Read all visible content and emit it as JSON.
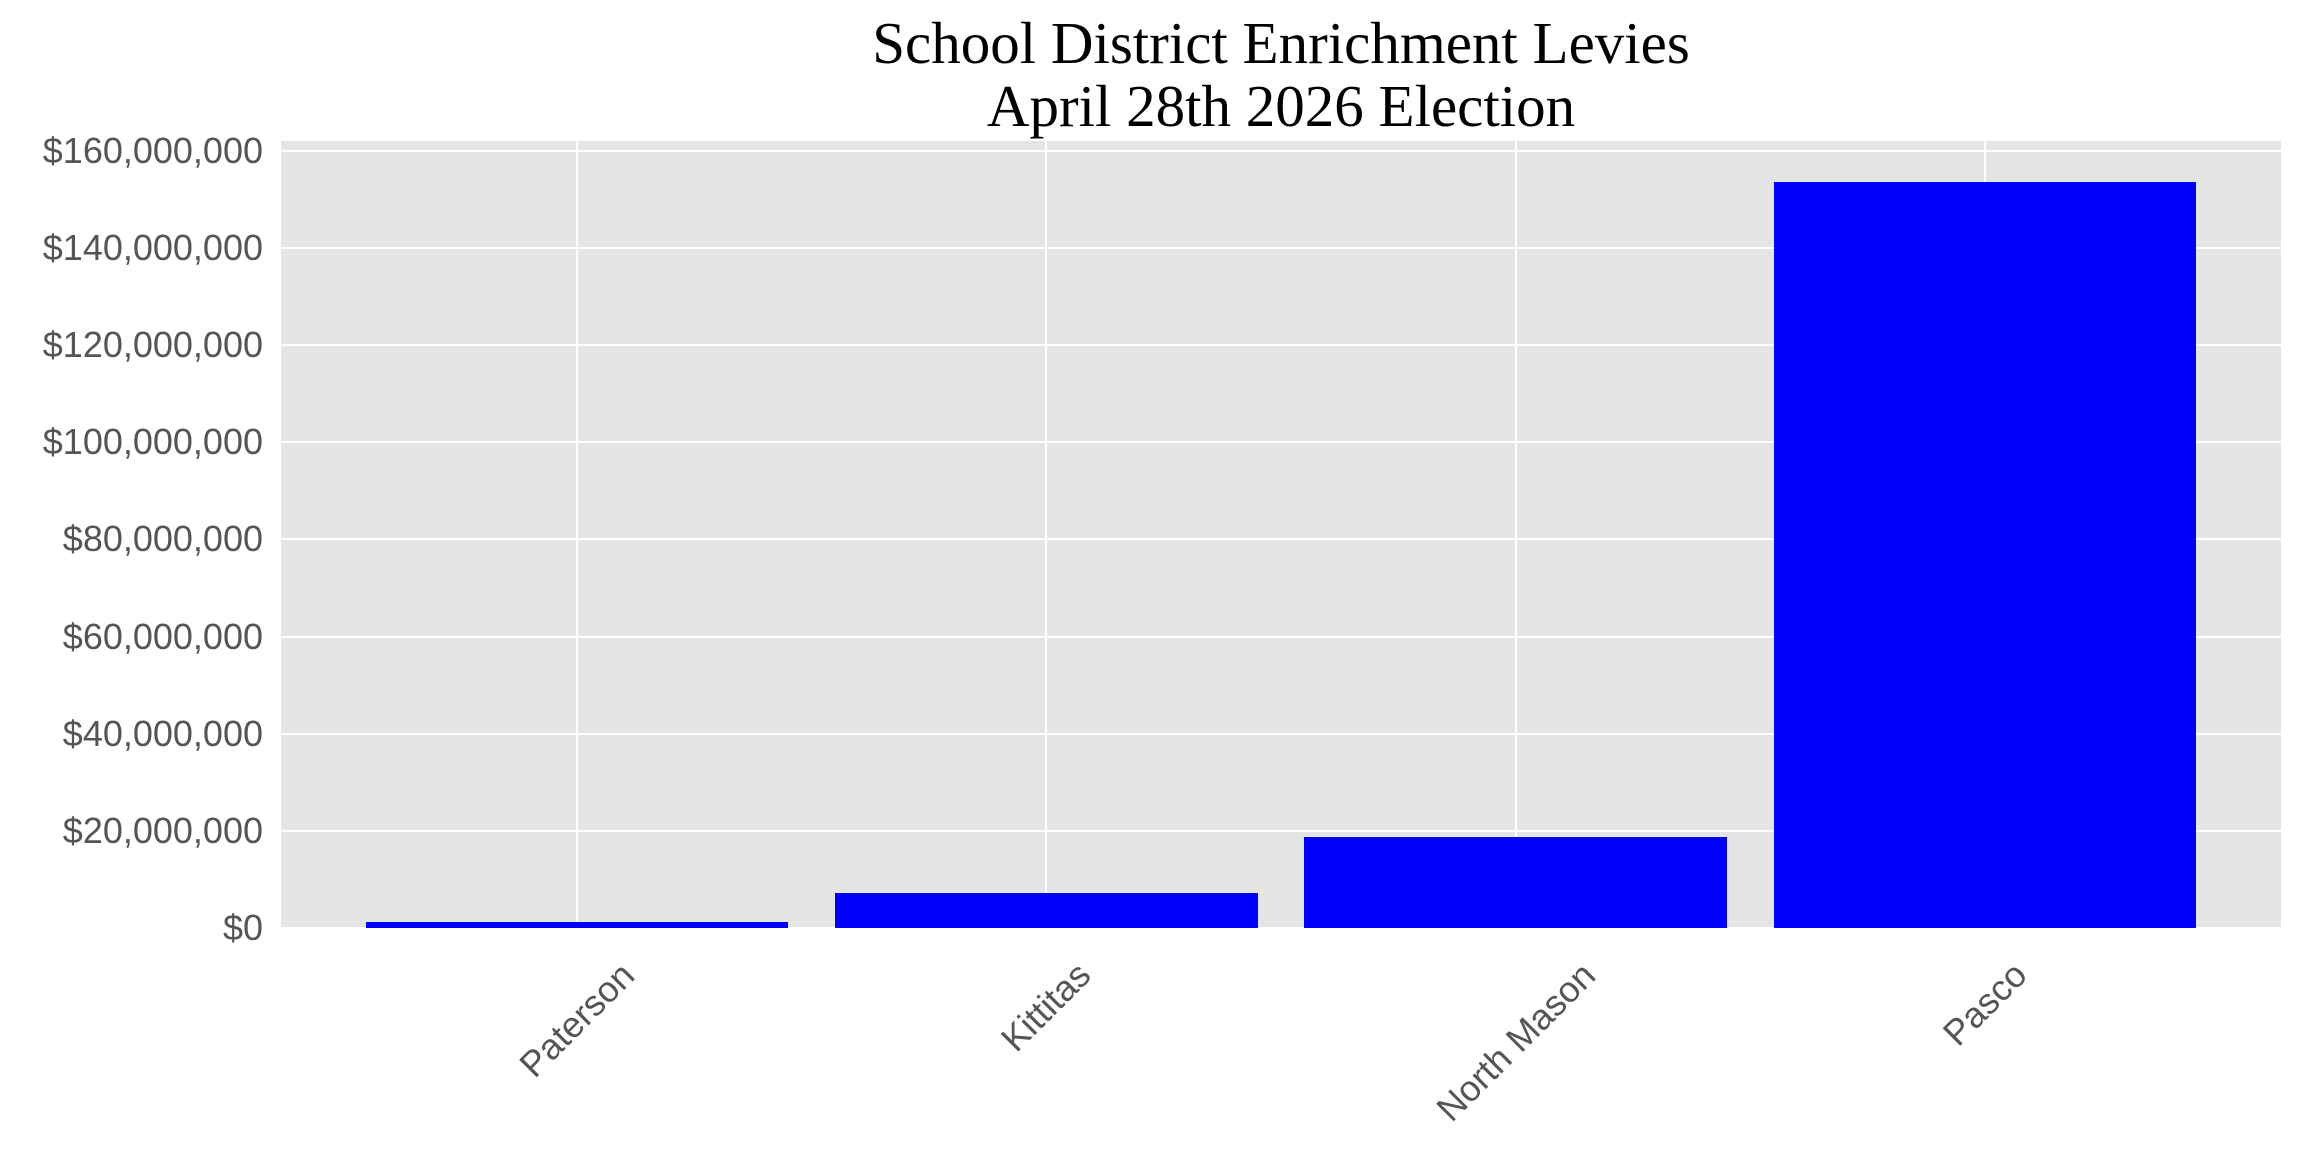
{
  "chart_data": {
    "type": "bar",
    "title": "School District Enrichment Levies\nApril 28th 2026 Election",
    "title_lines": [
      "School District Enrichment Levies",
      "April 28th 2026 Election"
    ],
    "xlabel": "",
    "ylabel": "",
    "categories": [
      "Paterson",
      "Kittitas",
      "North Mason",
      "Pasco"
    ],
    "values": [
      1200000,
      7300000,
      18800000,
      153600000
    ],
    "ylim": [
      0,
      162000000
    ],
    "yticks": [
      0,
      20000000,
      40000000,
      60000000,
      80000000,
      100000000,
      120000000,
      140000000,
      160000000
    ],
    "ytick_labels": [
      "$0",
      "$20,000,000",
      "$40,000,000",
      "$60,000,000",
      "$80,000,000",
      "$100,000,000",
      "$120,000,000",
      "$140,000,000",
      "$160,000,000"
    ],
    "xtick_rotation": 45,
    "grid": true,
    "legend": null,
    "bar_color": "#0000ff",
    "background_color": "#e5e5e5",
    "grid_color": "#ffffff",
    "tick_label_color": "#555555"
  }
}
